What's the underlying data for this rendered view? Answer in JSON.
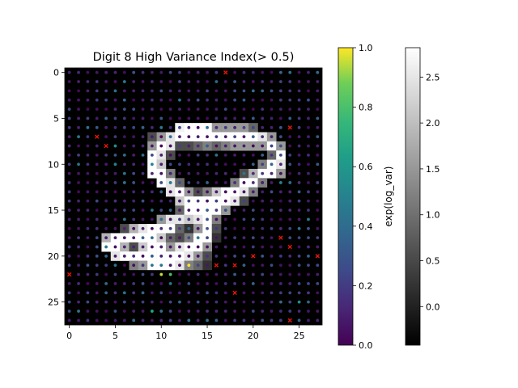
{
  "chart_data": {
    "type": "heatmap",
    "title": "Digit 8 High Variance Index(> 0.5)",
    "x_ticks": [
      0,
      5,
      10,
      15,
      20,
      25
    ],
    "y_ticks": [
      0,
      5,
      10,
      15,
      20,
      25
    ],
    "xlim": [
      -0.5,
      27.5
    ],
    "ylim": [
      27.5,
      -0.5
    ],
    "grid_size": 28,
    "image": {
      "description": "grayscale digit image, rows of 28 values",
      "rows": [
        "0000000000000000000000000000",
        "0000000000000000000000000000",
        "0000000000000000000000000000",
        "0000000000000000000000000000",
        "0000000000000000000000000000",
        "0000000000000000000000000000",
        "0000000000000000000000000000",
        "0000000000000000000000000000",
        "0000000000000000000000000000",
        "0000000000000000000000000000",
        "0000000000000000000000000000",
        "0000000000000000000000000000",
        "0000000000000000000000000000",
        "0000000000000000000000000000",
        "0000000000000000000000000000",
        "0000000000000000000000000000",
        "0000000000000000000000000000",
        "0000000000000000000000000000",
        "0000000000000000000000000000",
        "0000000000000000000000000000",
        "0000000000000000000000000000",
        "0000000000000000000000000000",
        "0000000000000000000000000000",
        "0000000000000000000000000000",
        "0000000000000000000000000000",
        "0000000000000000000000000000",
        "0000000000000000000000000000",
        "0000000000000000000000000000"
      ],
      "bright_cells": [
        [
          6,
          12,
          0.95
        ],
        [
          6,
          13,
          1
        ],
        [
          6,
          14,
          1
        ],
        [
          6,
          15,
          1
        ],
        [
          6,
          16,
          0.6
        ],
        [
          6,
          17,
          0.6
        ],
        [
          6,
          18,
          0.6
        ],
        [
          6,
          19,
          0.6
        ],
        [
          6,
          20,
          0.4
        ],
        [
          7,
          9,
          0.3
        ],
        [
          7,
          10,
          0.6
        ],
        [
          7,
          11,
          0.9
        ],
        [
          7,
          12,
          1
        ],
        [
          7,
          13,
          1
        ],
        [
          7,
          14,
          1
        ],
        [
          7,
          15,
          1
        ],
        [
          7,
          16,
          1
        ],
        [
          7,
          17,
          1
        ],
        [
          7,
          18,
          1
        ],
        [
          7,
          19,
          1
        ],
        [
          7,
          20,
          1
        ],
        [
          7,
          21,
          0.9
        ],
        [
          7,
          22,
          0.6
        ],
        [
          8,
          9,
          0.6
        ],
        [
          8,
          10,
          1
        ],
        [
          8,
          11,
          0.9
        ],
        [
          8,
          12,
          0.3
        ],
        [
          8,
          13,
          0.3
        ],
        [
          8,
          14,
          0.4
        ],
        [
          8,
          15,
          0.5
        ],
        [
          8,
          16,
          0.4
        ],
        [
          8,
          17,
          0.5
        ],
        [
          8,
          18,
          0.6
        ],
        [
          8,
          19,
          0.6
        ],
        [
          8,
          20,
          0.6
        ],
        [
          8,
          21,
          0.6
        ],
        [
          8,
          22,
          1
        ],
        [
          8,
          23,
          0.6
        ],
        [
          9,
          9,
          1
        ],
        [
          9,
          10,
          0.9
        ],
        [
          9,
          11,
          0.3
        ],
        [
          9,
          22,
          0.4
        ],
        [
          9,
          23,
          1
        ],
        [
          10,
          9,
          1
        ],
        [
          10,
          10,
          0.8
        ],
        [
          10,
          21,
          0.5
        ],
        [
          10,
          22,
          1
        ],
        [
          10,
          23,
          0.9
        ],
        [
          11,
          9,
          1
        ],
        [
          11,
          10,
          1
        ],
        [
          11,
          11,
          0.5
        ],
        [
          11,
          19,
          0.3
        ],
        [
          11,
          20,
          0.7
        ],
        [
          11,
          21,
          1
        ],
        [
          11,
          22,
          1
        ],
        [
          11,
          23,
          0.6
        ],
        [
          12,
          10,
          1
        ],
        [
          12,
          11,
          0.9
        ],
        [
          12,
          12,
          0.4
        ],
        [
          12,
          18,
          0.5
        ],
        [
          12,
          19,
          1
        ],
        [
          12,
          20,
          1
        ],
        [
          12,
          21,
          0.5
        ],
        [
          13,
          11,
          0.9
        ],
        [
          13,
          12,
          1
        ],
        [
          13,
          13,
          0.6
        ],
        [
          13,
          14,
          0.3
        ],
        [
          13,
          15,
          0.5
        ],
        [
          13,
          16,
          0.8
        ],
        [
          13,
          17,
          1
        ],
        [
          13,
          18,
          1
        ],
        [
          13,
          19,
          0.9
        ],
        [
          13,
          20,
          0.5
        ],
        [
          14,
          12,
          0.8
        ],
        [
          14,
          13,
          1
        ],
        [
          14,
          14,
          1
        ],
        [
          14,
          15,
          1
        ],
        [
          14,
          16,
          1
        ],
        [
          14,
          17,
          1
        ],
        [
          14,
          18,
          0.9
        ],
        [
          14,
          19,
          0.3
        ],
        [
          15,
          12,
          0.4
        ],
        [
          15,
          13,
          1
        ],
        [
          15,
          14,
          1
        ],
        [
          15,
          15,
          1
        ],
        [
          15,
          16,
          1
        ],
        [
          15,
          17,
          0.6
        ],
        [
          16,
          10,
          0.6
        ],
        [
          16,
          11,
          0.9
        ],
        [
          16,
          12,
          0.9
        ],
        [
          16,
          13,
          0.8
        ],
        [
          16,
          14,
          0.9
        ],
        [
          16,
          15,
          1
        ],
        [
          16,
          16,
          0.5
        ],
        [
          17,
          6,
          0.3
        ],
        [
          17,
          7,
          0.7
        ],
        [
          17,
          8,
          0.9
        ],
        [
          17,
          9,
          1
        ],
        [
          17,
          10,
          1
        ],
        [
          17,
          11,
          1
        ],
        [
          17,
          12,
          0.4
        ],
        [
          17,
          13,
          0.2
        ],
        [
          17,
          14,
          0.6
        ],
        [
          17,
          15,
          1
        ],
        [
          17,
          16,
          0.3
        ],
        [
          18,
          4,
          0.7
        ],
        [
          18,
          5,
          1
        ],
        [
          18,
          6,
          1
        ],
        [
          18,
          7,
          1
        ],
        [
          18,
          8,
          1
        ],
        [
          18,
          9,
          1
        ],
        [
          18,
          10,
          0.8
        ],
        [
          18,
          11,
          0.4
        ],
        [
          18,
          12,
          0.3
        ],
        [
          18,
          13,
          0.5
        ],
        [
          18,
          14,
          1
        ],
        [
          18,
          15,
          1
        ],
        [
          18,
          16,
          0.2
        ],
        [
          19,
          4,
          1
        ],
        [
          19,
          5,
          1
        ],
        [
          19,
          6,
          0.7
        ],
        [
          19,
          7,
          0.3
        ],
        [
          19,
          8,
          0.8
        ],
        [
          19,
          9,
          1
        ],
        [
          19,
          10,
          1
        ],
        [
          19,
          11,
          0.6
        ],
        [
          19,
          12,
          0.9
        ],
        [
          19,
          13,
          1
        ],
        [
          19,
          14,
          1
        ],
        [
          19,
          15,
          0.6
        ],
        [
          20,
          5,
          0.9
        ],
        [
          20,
          6,
          1
        ],
        [
          20,
          7,
          1
        ],
        [
          20,
          8,
          1
        ],
        [
          20,
          9,
          1
        ],
        [
          20,
          10,
          1
        ],
        [
          20,
          11,
          1
        ],
        [
          20,
          12,
          1
        ],
        [
          20,
          13,
          0.9
        ],
        [
          20,
          14,
          0.6
        ],
        [
          20,
          15,
          0.3
        ],
        [
          21,
          7,
          0.5
        ],
        [
          21,
          8,
          0.6
        ],
        [
          21,
          9,
          1
        ],
        [
          21,
          10,
          1
        ],
        [
          21,
          11,
          1
        ],
        [
          21,
          12,
          0.9
        ],
        [
          21,
          13,
          0.5
        ],
        [
          21,
          14,
          0.4
        ],
        [
          21,
          15,
          0.2
        ]
      ]
    },
    "colorbar_dots": {
      "label": "exp(log_var)",
      "range": [
        0.0,
        1.0
      ],
      "ticks": [
        0.0,
        0.2,
        0.4,
        0.6,
        0.8,
        1.0
      ],
      "tick_labels": [
        "0.0",
        "0.2",
        "0.4",
        "0.6",
        "0.8",
        "1.0"
      ]
    },
    "colorbar_image": {
      "range": [
        -0.42,
        2.82
      ],
      "ticks": [
        0.0,
        0.5,
        1.0,
        1.5,
        2.0,
        2.5
      ],
      "tick_labels": [
        "0.0",
        "0.5",
        "1.0",
        "1.5",
        "2.0",
        "2.5"
      ]
    },
    "high_variance_marks": [
      [
        0,
        17
      ],
      [
        6,
        24
      ],
      [
        7,
        3
      ],
      [
        8,
        4
      ],
      [
        18,
        23
      ],
      [
        19,
        24
      ],
      [
        20,
        20
      ],
      [
        20,
        27
      ],
      [
        21,
        16
      ],
      [
        21,
        18
      ],
      [
        22,
        0
      ],
      [
        24,
        18
      ],
      [
        27,
        24
      ]
    ],
    "bright_dots": [
      [
        21,
        13,
        1.0
      ],
      [
        22,
        10,
        0.95
      ],
      [
        22,
        11,
        0.8
      ],
      [
        26,
        9,
        0.65
      ],
      [
        25,
        25,
        0.55
      ],
      [
        8,
        5,
        0.55
      ],
      [
        10,
        5,
        0.5
      ],
      [
        10,
        9,
        0.5
      ],
      [
        11,
        19,
        0.45
      ],
      [
        12,
        23,
        0.5
      ]
    ]
  }
}
